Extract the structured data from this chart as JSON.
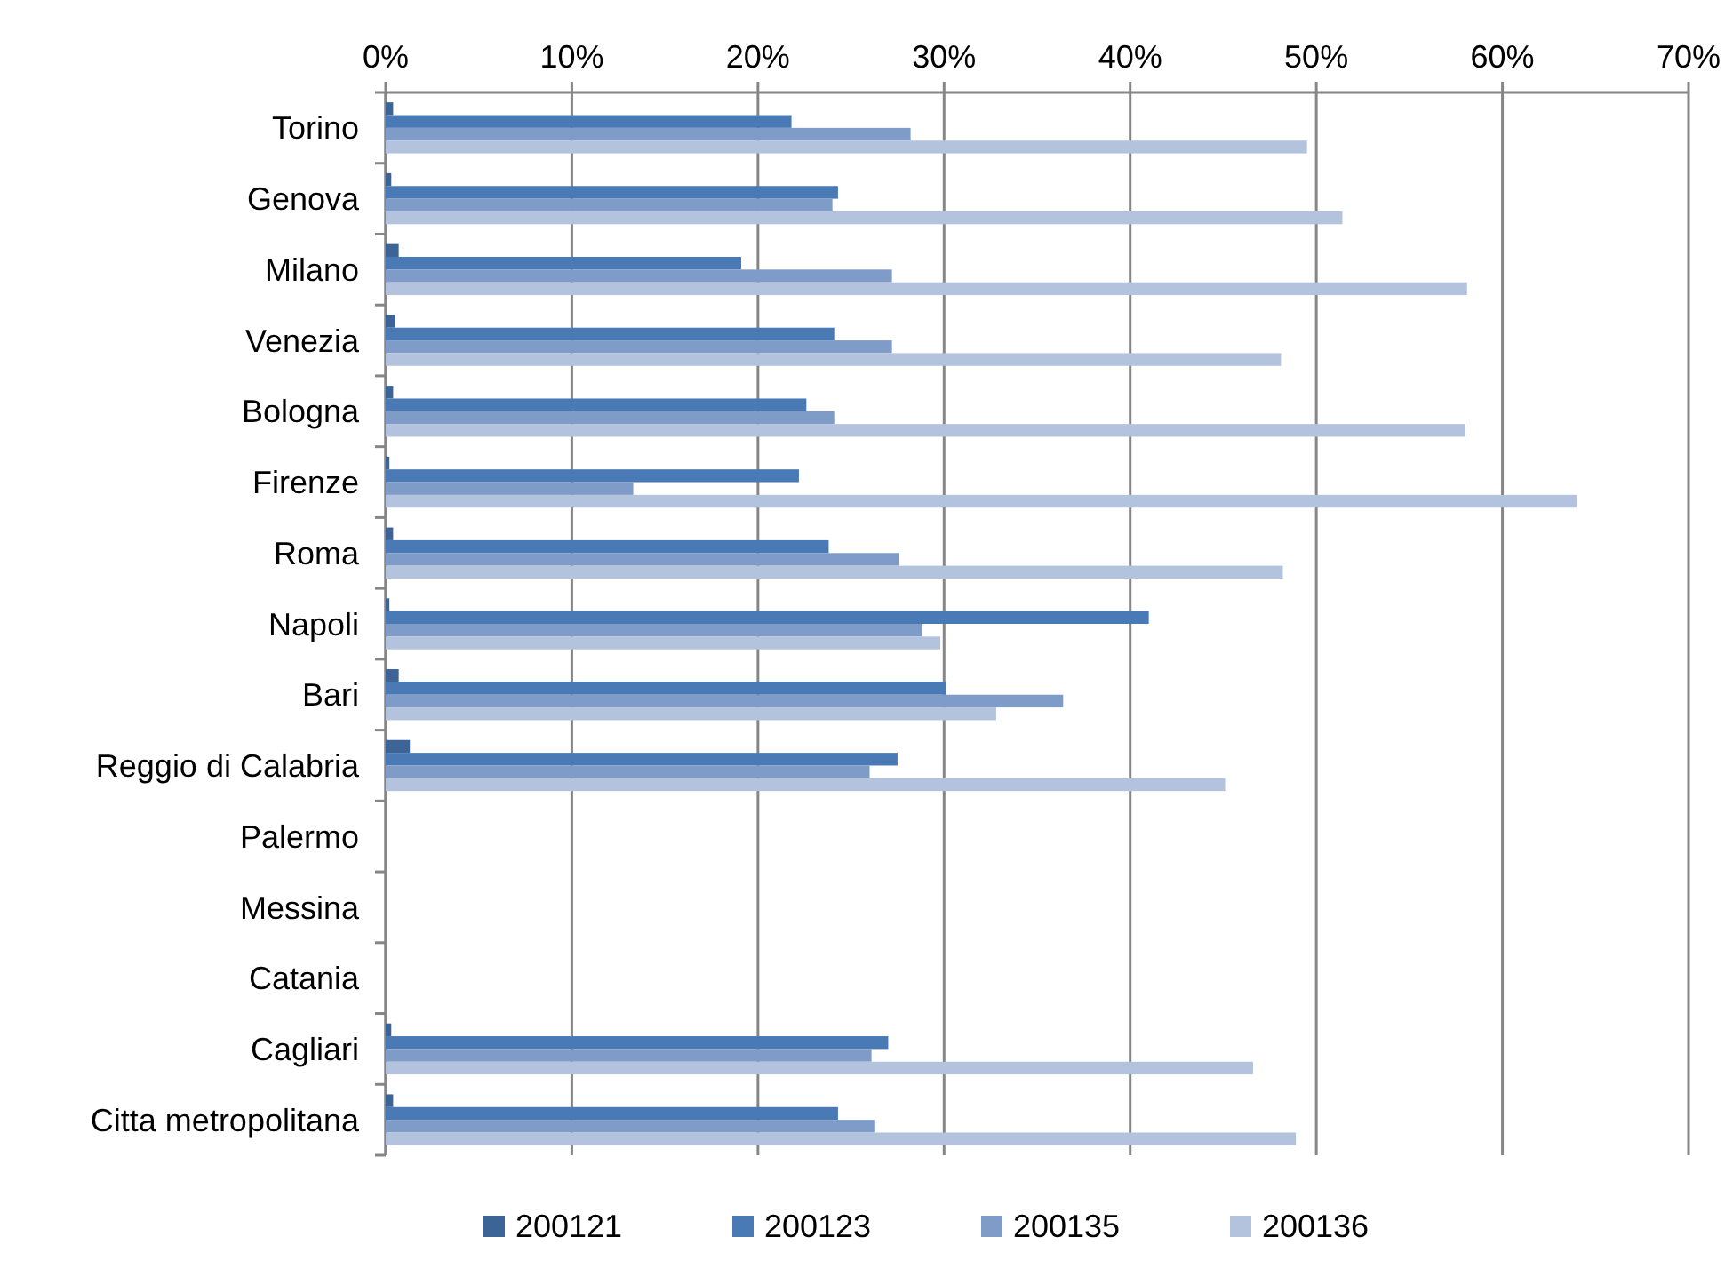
{
  "chart_data": {
    "type": "bar",
    "orientation": "horizontal",
    "categories": [
      "Torino",
      "Genova",
      "Milano",
      "Venezia",
      "Bologna",
      "Firenze",
      "Roma",
      "Napoli",
      "Bari",
      "Reggio di Calabria",
      "Palermo",
      "Messina",
      "Catania",
      "Cagliari",
      "Citta metropolitana"
    ],
    "series": [
      {
        "name": "200121",
        "color": "#3c6496",
        "values": [
          0.4,
          0.3,
          0.7,
          0.5,
          0.4,
          0.2,
          0.4,
          0.2,
          0.7,
          1.3,
          null,
          null,
          null,
          0.3,
          0.4
        ]
      },
      {
        "name": "200123",
        "color": "#4a7ab5",
        "values": [
          21.8,
          24.3,
          19.1,
          24.1,
          22.6,
          22.2,
          23.8,
          41.0,
          30.1,
          27.5,
          null,
          null,
          null,
          27.0,
          24.3
        ]
      },
      {
        "name": "200135",
        "color": "#7f9cc9",
        "values": [
          28.2,
          24.0,
          27.2,
          27.2,
          24.1,
          13.3,
          27.6,
          28.8,
          36.4,
          26.0,
          null,
          null,
          null,
          26.1,
          26.3
        ]
      },
      {
        "name": "200136",
        "color": "#b3c3de",
        "values": [
          49.5,
          51.4,
          58.1,
          48.1,
          58.0,
          64.0,
          48.2,
          29.8,
          32.8,
          45.1,
          null,
          null,
          null,
          46.6,
          48.9
        ]
      }
    ],
    "xlim": [
      0,
      70
    ],
    "xticks": [
      {
        "value": 0,
        "label": "0%"
      },
      {
        "value": 10,
        "label": "10%"
      },
      {
        "value": 20,
        "label": "20%"
      },
      {
        "value": 30,
        "label": "30%"
      },
      {
        "value": 40,
        "label": "40%"
      },
      {
        "value": 50,
        "label": "50%"
      },
      {
        "value": 60,
        "label": "60%"
      },
      {
        "value": 70,
        "label": "70%"
      }
    ],
    "grid": "x",
    "legend": "bottom"
  }
}
